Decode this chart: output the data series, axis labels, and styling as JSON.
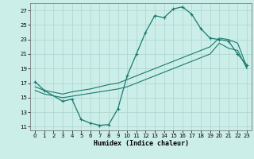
{
  "xlabel": "Humidex (Indice chaleur)",
  "bg_color": "#cceee8",
  "line_color": "#1a7a6e",
  "grid_color": "#aad4ce",
  "xlim": [
    -0.5,
    23.5
  ],
  "ylim": [
    10.5,
    28.0
  ],
  "yticks": [
    11,
    13,
    15,
    17,
    19,
    21,
    23,
    25,
    27
  ],
  "xticks": [
    0,
    1,
    2,
    3,
    4,
    5,
    6,
    7,
    8,
    9,
    10,
    11,
    12,
    13,
    14,
    15,
    16,
    17,
    18,
    19,
    20,
    21,
    22,
    23
  ],
  "series1_x": [
    0,
    1,
    3,
    4,
    5,
    6,
    7,
    8,
    9,
    10,
    11,
    12,
    13,
    14,
    15,
    16,
    17,
    18,
    19,
    20,
    21,
    22,
    23
  ],
  "series1_y": [
    17.2,
    16.0,
    14.5,
    14.8,
    12.0,
    11.5,
    11.2,
    11.3,
    13.5,
    18.0,
    21.0,
    24.0,
    26.3,
    26.0,
    27.2,
    27.5,
    26.5,
    24.5,
    23.2,
    23.0,
    22.8,
    21.0,
    19.5
  ],
  "series2_x": [
    0,
    1,
    3,
    4,
    5,
    6,
    7,
    8,
    9,
    10,
    11,
    12,
    13,
    14,
    15,
    16,
    17,
    18,
    19,
    20,
    21,
    22,
    23
  ],
  "series2_y": [
    16.5,
    16.0,
    15.5,
    15.8,
    16.0,
    16.2,
    16.5,
    16.8,
    17.0,
    17.5,
    18.0,
    18.5,
    19.0,
    19.5,
    20.0,
    20.5,
    21.0,
    21.5,
    22.0,
    23.2,
    23.0,
    22.5,
    19.2
  ],
  "series3_x": [
    0,
    1,
    3,
    4,
    5,
    6,
    7,
    8,
    9,
    10,
    11,
    12,
    13,
    14,
    15,
    16,
    17,
    18,
    19,
    20,
    21,
    22,
    23
  ],
  "series3_y": [
    16.0,
    15.5,
    15.0,
    15.2,
    15.4,
    15.6,
    15.8,
    16.0,
    16.2,
    16.5,
    17.0,
    17.5,
    18.0,
    18.5,
    19.0,
    19.5,
    20.0,
    20.5,
    21.0,
    22.5,
    21.8,
    21.5,
    19.0
  ]
}
